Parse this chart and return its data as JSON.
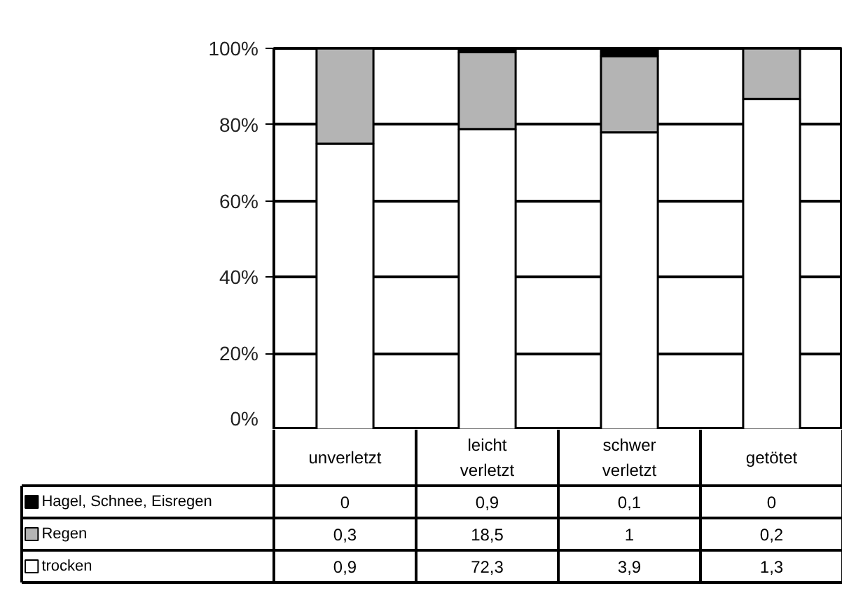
{
  "chart_data": [
    {
      "type": "bar",
      "stacked": true,
      "categories": [
        "unverletzt",
        "leicht verletzt",
        "schwer verletzt",
        "getötet"
      ],
      "series": [
        {
          "name": "trocken",
          "color": "#ffffff",
          "values": [
            75.0,
            78.8,
            78.0,
            86.7
          ]
        },
        {
          "name": "Regen",
          "color": "#b4b4b4",
          "values": [
            25.0,
            20.2,
            20.0,
            13.3
          ]
        },
        {
          "name": "Hagel, Schnee, Eisregen",
          "color": "#000000",
          "values": [
            0,
            1.0,
            2.0,
            0
          ]
        }
      ],
      "ylim": [
        0,
        100
      ],
      "yticks": [
        {
          "value": 0,
          "label": "0%"
        },
        {
          "value": 20,
          "label": "20%"
        },
        {
          "value": 40,
          "label": "40%"
        },
        {
          "value": 60,
          "label": "60%"
        },
        {
          "value": 80,
          "label": "80%"
        },
        {
          "value": 100,
          "label": "100%"
        }
      ],
      "grid": "y",
      "legend": "bottom left"
    },
    {
      "type": "other",
      "annotations": [
        "0",
        "0,9",
        "0,1",
        "0",
        "0,3",
        "18,5",
        "1",
        "0,2",
        "0,9",
        "72,3",
        "3,9",
        "1,3"
      ]
    }
  ]
}
